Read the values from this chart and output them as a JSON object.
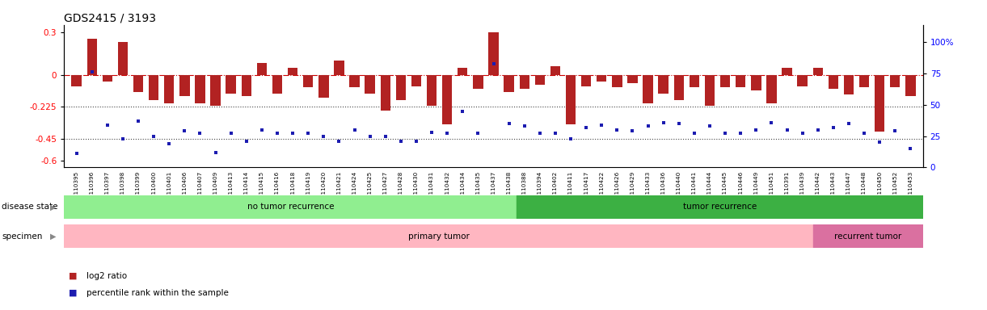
{
  "title": "GDS2415 / 3193",
  "ylim_left": [
    -0.65,
    0.35
  ],
  "yticks_left": [
    0.3,
    0.0,
    -0.225,
    -0.45,
    -0.6
  ],
  "ytick_left_labels": [
    "0.3",
    "0",
    "-0.225",
    "-0.45",
    "-0.6"
  ],
  "ylim_right": [
    0,
    116.67
  ],
  "yticks_right": [
    100,
    75,
    50,
    25,
    0
  ],
  "right_tick_labels": [
    "100%",
    "75",
    "50",
    "25",
    "0"
  ],
  "samples": [
    "GSM110395",
    "GSM110396",
    "GSM110397",
    "GSM110398",
    "GSM110399",
    "GSM110400",
    "GSM110401",
    "GSM110406",
    "GSM110407",
    "GSM110409",
    "GSM110413",
    "GSM110414",
    "GSM110415",
    "GSM110416",
    "GSM110418",
    "GSM110419",
    "GSM110420",
    "GSM110421",
    "GSM110424",
    "GSM110425",
    "GSM110427",
    "GSM110428",
    "GSM110430",
    "GSM110431",
    "GSM110432",
    "GSM110434",
    "GSM110435",
    "GSM110437",
    "GSM110438",
    "GSM110388",
    "GSM110394",
    "GSM110402",
    "GSM110411",
    "GSM110417",
    "GSM110422",
    "GSM110426",
    "GSM110429",
    "GSM110433",
    "GSM110436",
    "GSM110440",
    "GSM110441",
    "GSM110444",
    "GSM110445",
    "GSM110446",
    "GSM110449",
    "GSM110451",
    "GSM110391",
    "GSM110439",
    "GSM110442",
    "GSM110443",
    "GSM110447",
    "GSM110448",
    "GSM110450",
    "GSM110452",
    "GSM110453"
  ],
  "log2_ratio": [
    -0.08,
    0.25,
    -0.05,
    0.23,
    -0.12,
    -0.18,
    -0.2,
    -0.15,
    -0.2,
    -0.22,
    -0.13,
    -0.15,
    0.08,
    -0.13,
    0.05,
    -0.09,
    -0.16,
    0.1,
    -0.09,
    -0.13,
    -0.25,
    -0.18,
    -0.08,
    -0.22,
    -0.35,
    0.05,
    -0.1,
    0.3,
    -0.12,
    -0.1,
    -0.07,
    0.06,
    -0.35,
    -0.08,
    -0.05,
    -0.09,
    -0.06,
    -0.2,
    -0.13,
    -0.18,
    -0.09,
    -0.22,
    -0.09,
    -0.09,
    -0.11,
    -0.2,
    0.05,
    -0.08,
    0.05,
    -0.1,
    -0.14,
    -0.09,
    -0.4,
    -0.09,
    -0.15
  ],
  "percentile_rank_right": [
    11,
    76,
    34,
    23,
    37,
    25,
    19,
    29,
    27,
    12,
    27,
    21,
    30,
    27,
    27,
    27,
    25,
    21,
    30,
    25,
    25,
    21,
    21,
    28,
    27,
    45,
    27,
    83,
    35,
    33,
    27,
    27,
    23,
    32,
    34,
    30,
    29,
    33,
    36,
    35,
    27,
    33,
    27,
    27,
    30,
    36,
    30,
    27,
    30,
    32,
    35,
    27,
    20,
    29,
    15
  ],
  "no_recurrence_count": 29,
  "recurrence_count": 26,
  "primary_tumor_count": 48,
  "recurrent_tumor_count": 7,
  "bar_color": "#B22222",
  "dot_color": "#1C1CB0",
  "no_recurrence_color": "#90EE90",
  "recurrence_color": "#3CB043",
  "primary_tumor_color": "#FFB6C1",
  "recurrent_tumor_color": "#DA70A0"
}
